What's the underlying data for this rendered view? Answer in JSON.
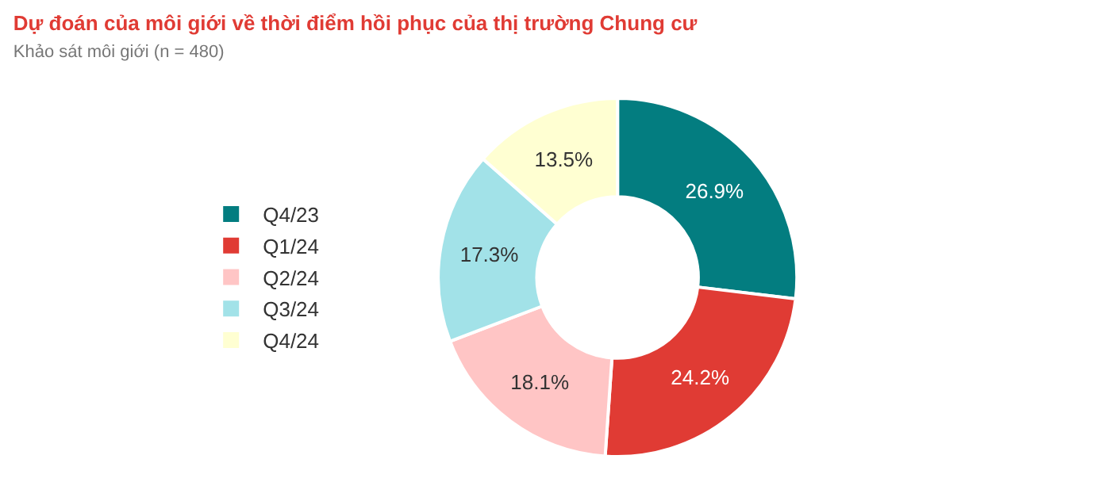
{
  "chart_data": {
    "type": "donut",
    "title": "Dự đoán của môi giới về thời điểm hồi phục của thị trường Chung cư",
    "subtitle": "Khảo sát môi giới (n = 480)",
    "categories": [
      "Q4/23",
      "Q1/24",
      "Q2/24",
      "Q3/24",
      "Q4/24"
    ],
    "values": [
      26.9,
      24.2,
      18.1,
      17.3,
      13.5
    ],
    "colors": [
      "#037d80",
      "#e03b34",
      "#ffc5c5",
      "#a2e2e8",
      "#ffffd2"
    ],
    "value_labels": [
      "26.9%",
      "24.2%",
      "18.1%",
      "17.3%",
      "13.5%"
    ],
    "legend": "left"
  }
}
